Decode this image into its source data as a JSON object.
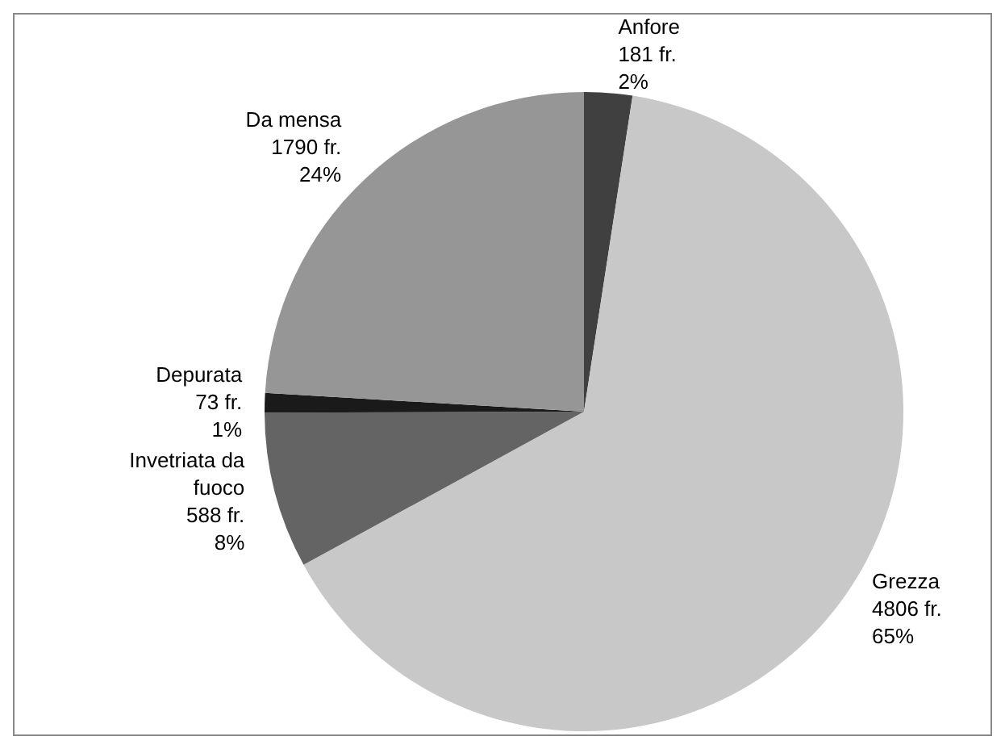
{
  "chart_data": {
    "type": "pie",
    "categories": [
      "Anfore",
      "Grezza",
      "Invetriata da\nfuoco",
      "Depurata",
      "Da mensa"
    ],
    "values": [
      181,
      4806,
      588,
      73,
      1790
    ],
    "colors": [
      "#404040",
      "#c8c8c8",
      "#646464",
      "#1a1a1a",
      "#969696"
    ],
    "value_labels": [
      "181 fr.\n2%",
      "4806 fr.\n65%",
      "588 fr.\n8%",
      "73 fr.\n1%",
      "1790 fr.\n24%"
    ],
    "legend": false
  }
}
